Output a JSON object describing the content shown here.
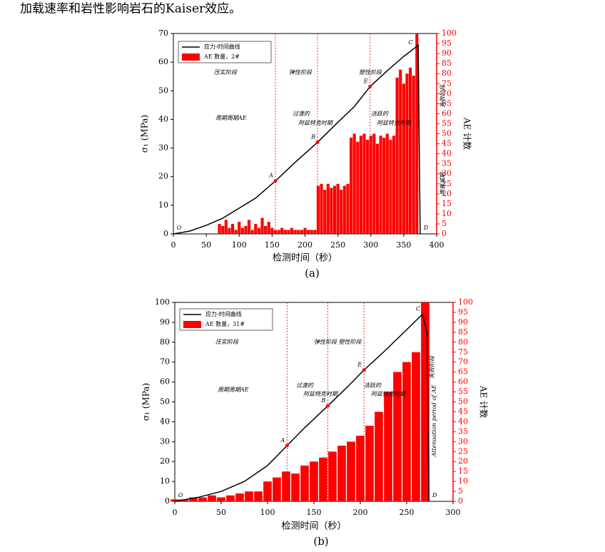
{
  "header": {
    "text": "加载速率和岩性影响岩石的Kaiser效应。"
  },
  "chart_data": [
    {
      "type": "line",
      "caption": "(a)",
      "x_label": "检测时间（秒）",
      "y_label": "σ₁ (MPa)",
      "y2_label": "AE 计数",
      "xlim": [
        0,
        400
      ],
      "xticks": [
        0,
        50,
        100,
        150,
        200,
        250,
        300,
        350,
        400
      ],
      "ylim": [
        0,
        70
      ],
      "yticks": [
        0,
        10,
        20,
        30,
        40,
        50,
        60,
        70
      ],
      "y2lim": [
        0,
        100
      ],
      "y2ticks": [
        0,
        5,
        10,
        15,
        20,
        25,
        30,
        35,
        40,
        45,
        50,
        55,
        60,
        65,
        70,
        75,
        80,
        85,
        90,
        95,
        100
      ],
      "series": [
        {
          "name": "应力-时间曲线",
          "type": "line",
          "color": "#000000",
          "x": [
            0,
            25,
            50,
            75,
            100,
            125,
            155,
            185,
            219,
            250,
            275,
            299,
            325,
            350,
            367,
            372,
            375
          ],
          "values": [
            0,
            1,
            3,
            5.5,
            9,
            12.5,
            18.5,
            25,
            32,
            39,
            44.5,
            51.5,
            57,
            62,
            65,
            66,
            0
          ]
        },
        {
          "name": "AE 数量，2#",
          "type": "bar",
          "axis": "y2",
          "color": "#ff0000",
          "x": [
            70,
            75,
            80,
            85,
            90,
            95,
            100,
            105,
            110,
            115,
            120,
            125,
            130,
            135,
            140,
            145,
            150,
            155,
            160,
            165,
            170,
            175,
            180,
            185,
            190,
            195,
            200,
            205,
            210,
            215,
            220,
            225,
            230,
            235,
            240,
            245,
            250,
            255,
            260,
            265,
            270,
            275,
            280,
            285,
            290,
            295,
            300,
            305,
            310,
            315,
            320,
            325,
            330,
            335,
            340,
            345,
            350,
            355,
            360,
            365,
            370
          ],
          "values": [
            5,
            4,
            7,
            3,
            5,
            2,
            6,
            3,
            4,
            7,
            2,
            5,
            3,
            8,
            4,
            6,
            3,
            2,
            2,
            3,
            2,
            2,
            3,
            2,
            2,
            2,
            3,
            2,
            2,
            2,
            24,
            25,
            22,
            25,
            23,
            24,
            25,
            22,
            24,
            25,
            48,
            50,
            46,
            49,
            50,
            47,
            49,
            50,
            45,
            49,
            48,
            50,
            47,
            49,
            78,
            82,
            75,
            80,
            83,
            79,
            100
          ]
        }
      ],
      "points": [
        {
          "label": "O",
          "x": 0,
          "y": 0
        },
        {
          "label": "A",
          "x": 155,
          "y": 18.5
        },
        {
          "label": "B",
          "x": 219,
          "y": 32
        },
        {
          "label": "E",
          "x": 299,
          "y": 51.5
        },
        {
          "label": "C",
          "x": 367,
          "y": 65
        },
        {
          "label": "D",
          "x": 375,
          "y": 0
        }
      ],
      "annotations": [
        "压实阶段",
        "弹性阶段",
        "塑性阶段",
        "周期周期AE",
        "过渡的",
        "阿兹特克时期",
        "活跃的",
        "阿兹特克时期",
        "失败阶段",
        "声衰减期"
      ]
    },
    {
      "type": "line",
      "caption": "(b)",
      "x_label": "检测时间（秒）",
      "y_label": "σ₁ (MPa)",
      "y2_label": "AE 计数",
      "xlim": [
        0,
        300
      ],
      "xticks": [
        0,
        50,
        100,
        150,
        200,
        250,
        300
      ],
      "ylim": [
        0,
        100
      ],
      "yticks": [
        0,
        10,
        20,
        30,
        40,
        50,
        60,
        70,
        80,
        90,
        100
      ],
      "y2lim": [
        0,
        100
      ],
      "y2ticks": [
        0,
        5,
        10,
        15,
        20,
        25,
        30,
        35,
        40,
        45,
        50,
        55,
        60,
        65,
        70,
        75,
        80,
        85,
        90,
        95,
        100
      ],
      "series": [
        {
          "name": "应力-时间曲线",
          "type": "line",
          "color": "#000000",
          "x": [
            0,
            25,
            50,
            75,
            100,
            121,
            140,
            165,
            185,
            204,
            225,
            245,
            267,
            272,
            274
          ],
          "values": [
            0,
            2,
            5,
            10,
            18,
            28,
            37,
            48,
            57,
            66,
            75,
            84,
            94,
            85,
            0
          ]
        },
        {
          "name": "AE 数量，31#",
          "type": "bar",
          "axis": "y2",
          "color": "#ff0000",
          "x": [
            0,
            10,
            20,
            30,
            40,
            50,
            60,
            70,
            80,
            90,
            100,
            110,
            120,
            130,
            140,
            150,
            160,
            170,
            180,
            190,
            200,
            210,
            220,
            230,
            240,
            250,
            260,
            270
          ],
          "values": [
            1,
            1,
            2,
            2,
            3,
            2,
            3,
            4,
            5,
            5,
            10,
            12,
            15,
            14,
            18,
            20,
            22,
            25,
            28,
            30,
            33,
            38,
            45,
            55,
            65,
            70,
            75,
            100
          ]
        }
      ],
      "points": [
        {
          "label": "O",
          "x": 0,
          "y": 0
        },
        {
          "label": "A",
          "x": 121,
          "y": 28
        },
        {
          "label": "B",
          "x": 165,
          "y": 48
        },
        {
          "label": "E",
          "x": 204,
          "y": 66
        },
        {
          "label": "C",
          "x": 267,
          "y": 94
        },
        {
          "label": "D",
          "x": 274,
          "y": 0
        }
      ],
      "annotations": [
        "压实阶段",
        "弹性阶段 塑性阶段",
        "周期周期AE",
        "过渡的",
        "阿兹特克时期",
        "活跃的",
        "阿兹特克时期",
        "失败阶段",
        "Attenuation period of AE"
      ]
    }
  ]
}
